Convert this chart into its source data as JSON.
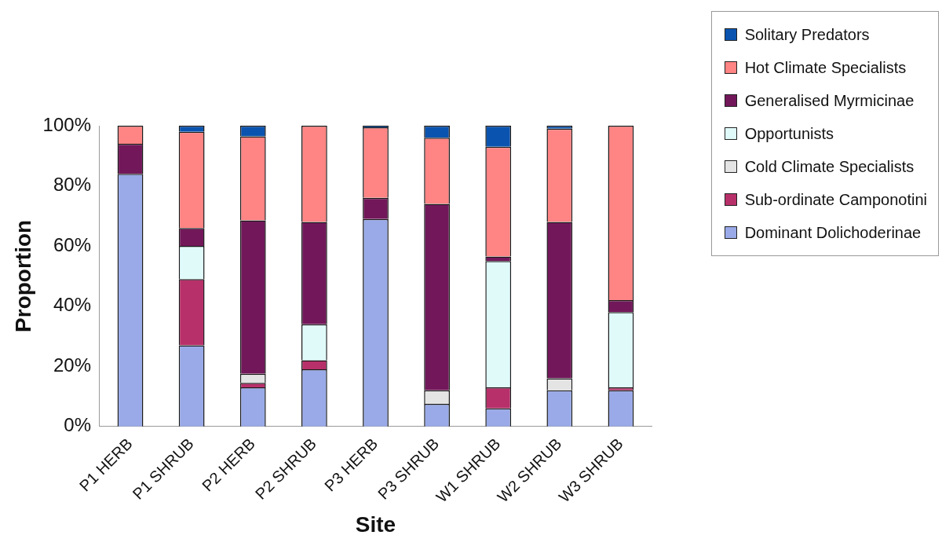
{
  "chart_data": {
    "type": "bar",
    "stacked": true,
    "xlabel": "Site",
    "ylabel": "Proportion",
    "categories": [
      "P1 HERB",
      "P1 SHRUB",
      "P2 HERB",
      "P2 SHRUB",
      "P3 HERB",
      "P3 SHRUB",
      "W1 SHRUB",
      "W2 SHRUB",
      "W3 SHRUB"
    ],
    "series": [
      {
        "name": "Dominant Dolichoderinae",
        "color": "#9aaae8",
        "values": [
          84,
          27,
          13,
          19,
          69,
          7.5,
          6,
          12,
          12
        ]
      },
      {
        "name": "Sub-ordinate Camponotini",
        "color": "#b8306a",
        "values": [
          0,
          22,
          1.5,
          3,
          0,
          0,
          7,
          0,
          1
        ]
      },
      {
        "name": "Cold Climate Specialists",
        "color": "#e4e4e4",
        "values": [
          0,
          0,
          3,
          0,
          0,
          4.5,
          0,
          4,
          0
        ]
      },
      {
        "name": "Opportunists",
        "color": "#e0fafa",
        "values": [
          0,
          11,
          0,
          12,
          0,
          0,
          42,
          0,
          25
        ]
      },
      {
        "name": "Generalised Myrmicinae",
        "color": "#72185a",
        "values": [
          10,
          6,
          51,
          34,
          7,
          62,
          1.5,
          52,
          4
        ]
      },
      {
        "name": "Hot Climate Specialists",
        "color": "#ff8484",
        "values": [
          6,
          32,
          28,
          32,
          23.5,
          22,
          36.5,
          31,
          58
        ]
      },
      {
        "name": "Solitary Predators",
        "color": "#0a54b0",
        "values": [
          0,
          2,
          3.5,
          0,
          0.5,
          4,
          7,
          1,
          0
        ]
      }
    ],
    "ylim": [
      0,
      100
    ],
    "yticks": [
      {
        "value": 0,
        "label": "0%"
      },
      {
        "value": 20,
        "label": "20%"
      },
      {
        "value": 40,
        "label": "40%"
      },
      {
        "value": 60,
        "label": "60%"
      },
      {
        "value": 80,
        "label": "80%"
      },
      {
        "value": 100,
        "label": "100%"
      }
    ],
    "grid": false,
    "legend": "top right"
  }
}
